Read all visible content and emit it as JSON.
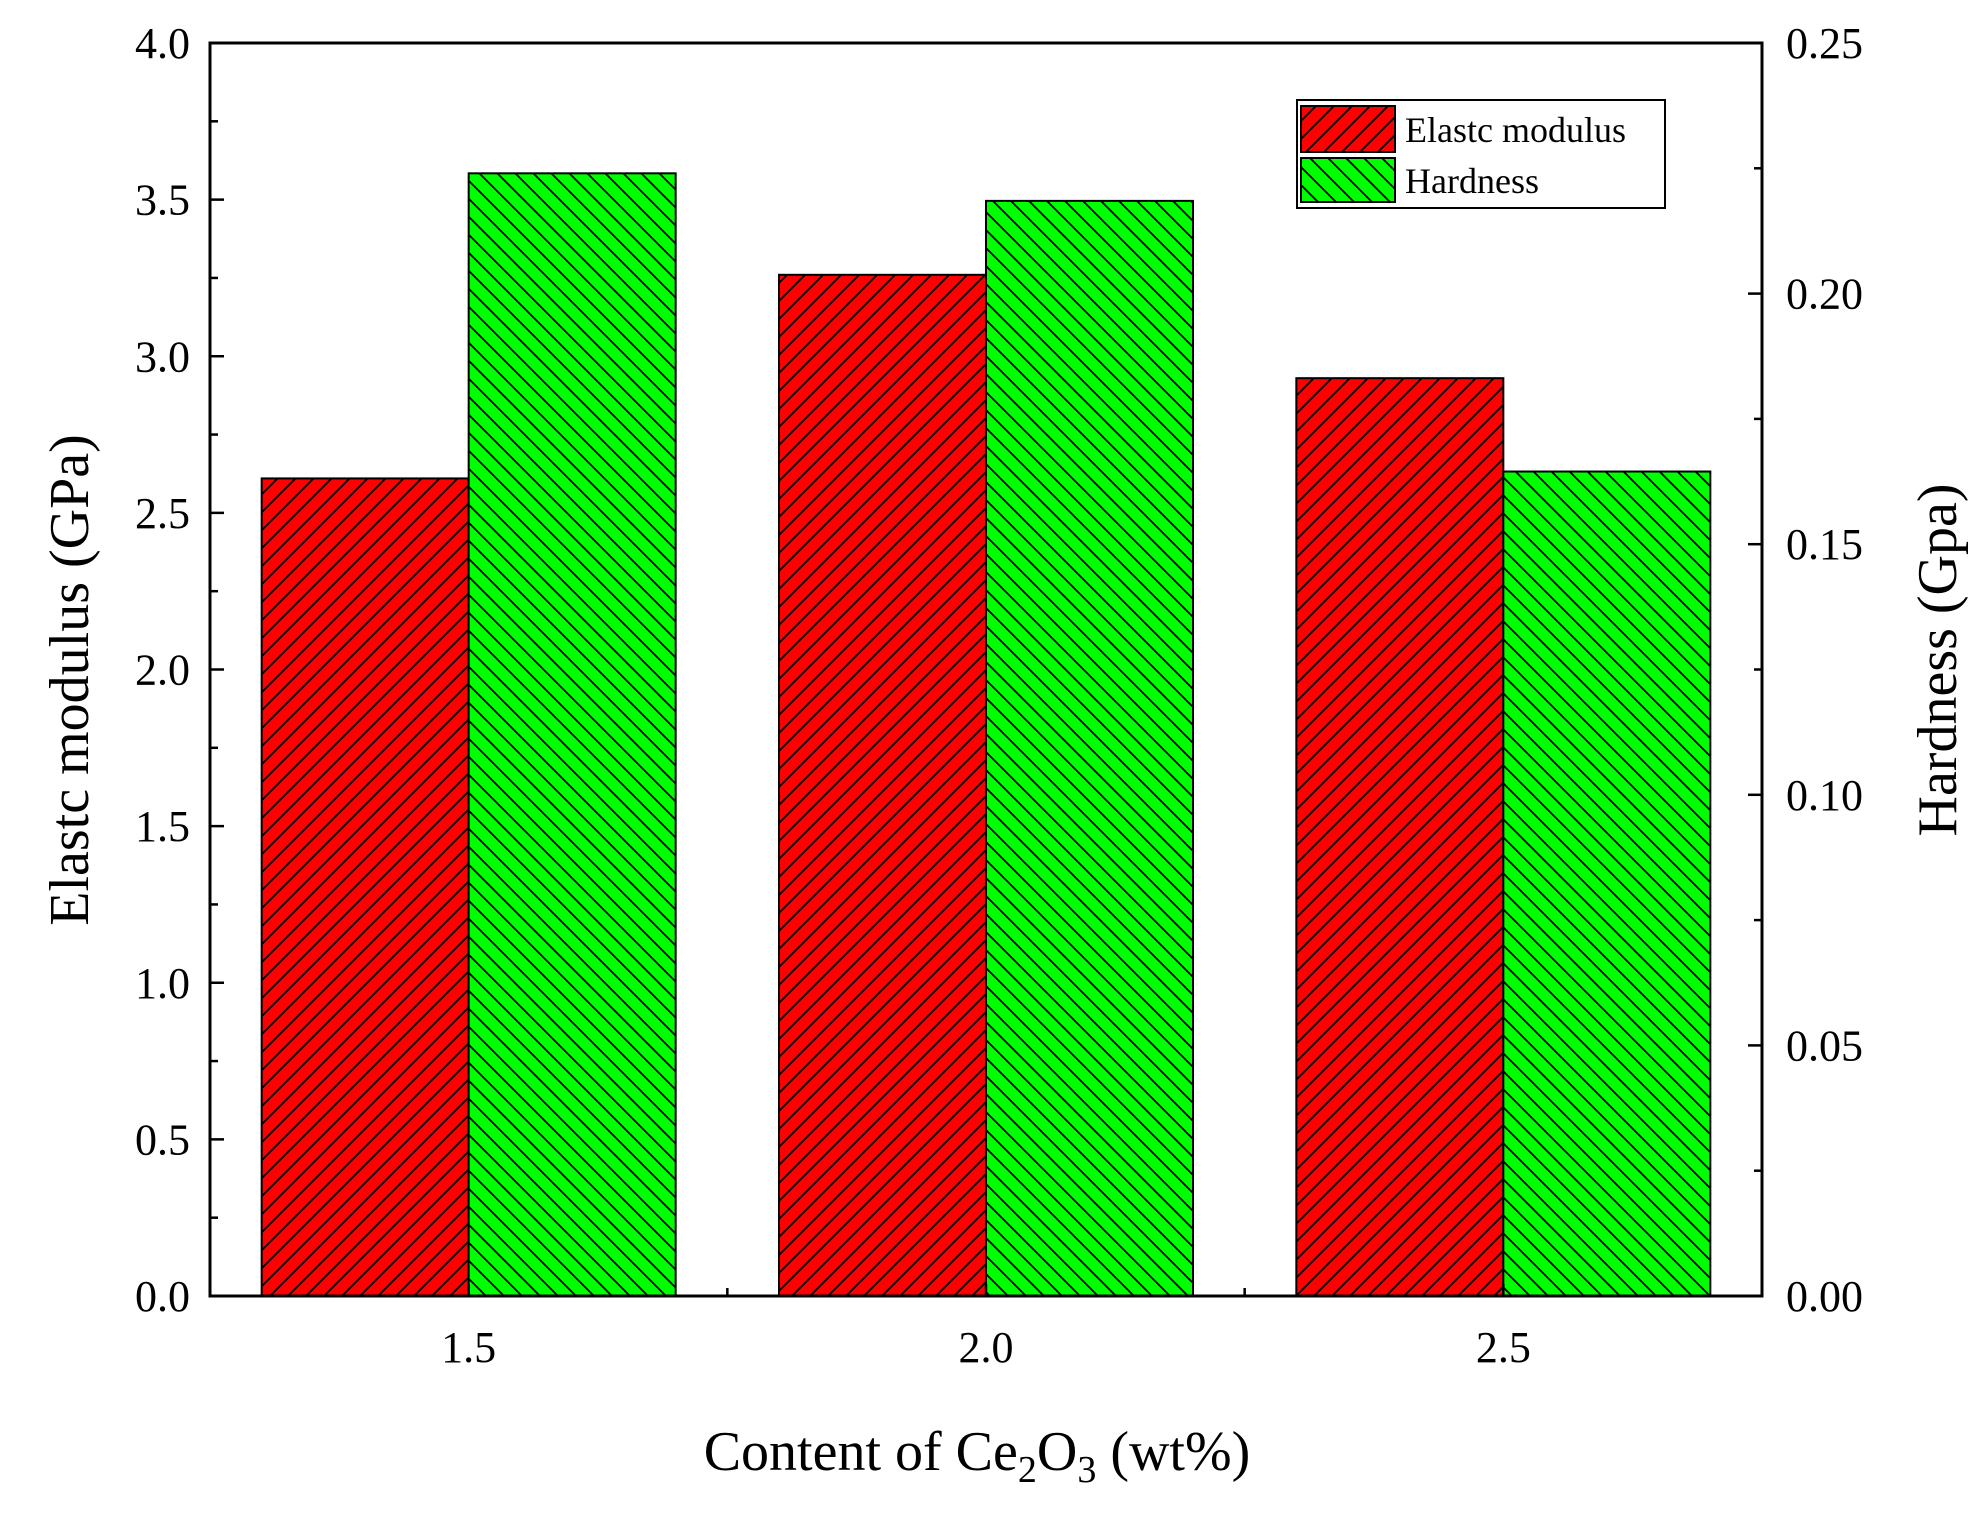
{
  "chart_data": {
    "type": "bar",
    "categories": [
      "1.5",
      "2.0",
      "2.5"
    ],
    "series": [
      {
        "name": "Elastc modulus",
        "axis": "left",
        "values": [
          2.61,
          3.26,
          2.93
        ],
        "color": "#ff0000",
        "hatch": "forward-diagonal"
      },
      {
        "name": "Hardness",
        "axis": "right",
        "values": [
          0.224,
          0.2185,
          0.1645
        ],
        "color": "#00ff00",
        "hatch": "backward-diagonal"
      }
    ],
    "xlabel": {
      "prefix": "Content of Ce",
      "sub1": "2",
      "mid": "O",
      "sub2": "3",
      "suffix": " (wt%)"
    },
    "ylabel_left": "Elastc modulus (GPa)",
    "ylabel_right": "Hardness (Gpa)",
    "ylim_left": [
      0,
      4.0
    ],
    "ylim_right": [
      0,
      0.25
    ],
    "yticks_left": [
      "0.0",
      "0.5",
      "1.0",
      "1.5",
      "2.0",
      "2.5",
      "3.0",
      "3.5",
      "4.0"
    ],
    "yticks_right": [
      "0.00",
      "0.05",
      "0.10",
      "0.15",
      "0.20",
      "0.25"
    ],
    "legend_position": "top-right",
    "grid": false
  }
}
